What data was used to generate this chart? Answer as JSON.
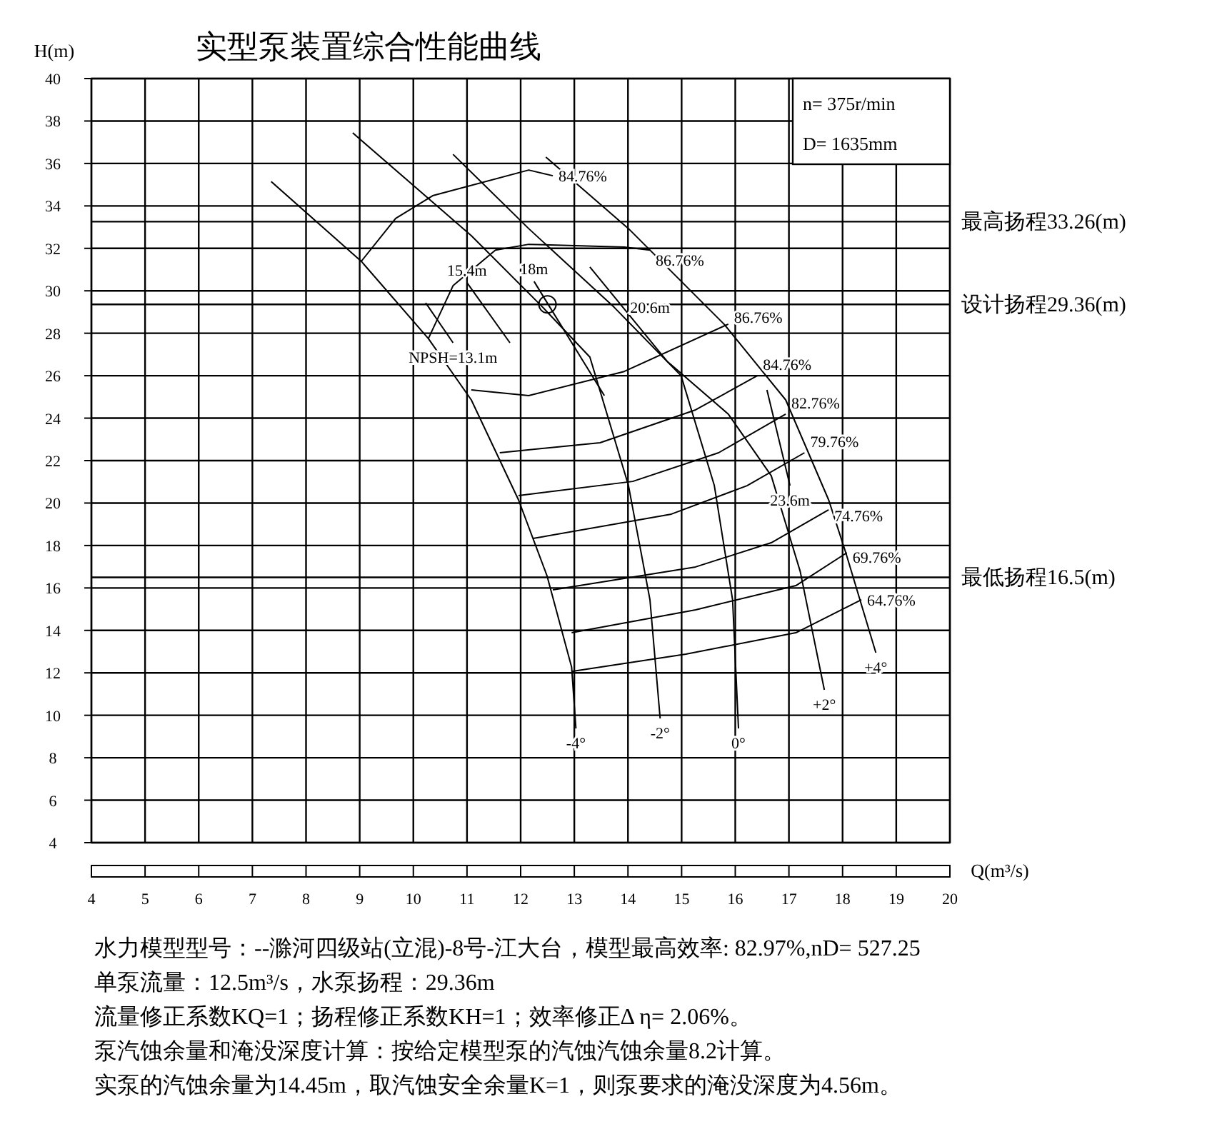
{
  "chart_data": {
    "type": "line",
    "title": "实型泵装置综合性能曲线",
    "xlabel": "Q(m³/s)",
    "ylabel": "H(m)",
    "xlim": [
      4,
      20
    ],
    "ylim": [
      4,
      40
    ],
    "xticks": [
      4,
      5,
      6,
      7,
      8,
      9,
      10,
      11,
      12,
      13,
      14,
      15,
      16,
      17,
      18,
      19,
      20
    ],
    "yticks": [
      4,
      6,
      8,
      10,
      12,
      14,
      16,
      18,
      20,
      22,
      24,
      26,
      28,
      30,
      32,
      34,
      36,
      38,
      40
    ],
    "grid": true,
    "legend": false,
    "marker": "none",
    "line_style": "solid",
    "series": [
      {
        "name": "-4°",
        "color": "#000000",
        "x": [
          7.35,
          9.03,
          10.28,
          11.08,
          11.96,
          12.49,
          12.95,
          13.03
        ],
        "values": [
          35.15,
          31.39,
          27.75,
          24.86,
          20.15,
          16.58,
          12.27,
          9.38
        ]
      },
      {
        "name": "-2°",
        "color": "#000000",
        "x": [
          8.87,
          11.08,
          12.41,
          13.29,
          14.01,
          14.41,
          14.6
        ],
        "values": [
          37.44,
          32.6,
          29.23,
          26.88,
          20.82,
          15.44,
          9.85
        ]
      },
      {
        "name": "0°",
        "color": "#000000",
        "x": [
          10.74,
          12.15,
          13.74,
          14.99,
          15.61,
          15.95,
          16.06
        ],
        "values": [
          36.43,
          32.93,
          29.23,
          26.0,
          20.82,
          15.44,
          9.38
        ]
      },
      {
        "name": "+2°",
        "color": "#000000",
        "x": [
          13.29,
          14.73,
          15.87,
          16.67,
          17.21,
          17.66
        ],
        "values": [
          31.12,
          26.68,
          24.19,
          21.29,
          16.78,
          11.2
        ]
      },
      {
        "name": "+4°",
        "color": "#000000",
        "x": [
          12.47,
          14.01,
          15.79,
          16.94,
          17.74,
          18.06,
          18.62
        ],
        "values": [
          36.3,
          32.93,
          28.43,
          24.86,
          20.15,
          17.66,
          12.95
        ]
      },
      {
        "name": "64.76%",
        "color": "#000000",
        "x": [
          12.95,
          15.08,
          17.13,
          18.35
        ],
        "values": [
          12.07,
          12.88,
          13.89,
          15.44
        ]
      },
      {
        "name": "69.76%",
        "color": "#000000",
        "x": [
          12.95,
          15.26,
          17.13,
          18.08
        ],
        "values": [
          13.89,
          14.97,
          16.11,
          17.66
        ]
      },
      {
        "name": "74.76%",
        "color": "#000000",
        "x": [
          12.6,
          15.26,
          16.67,
          17.74
        ],
        "values": [
          15.91,
          16.99,
          18.13,
          19.68
        ]
      },
      {
        "name": "79.76%",
        "color": "#000000",
        "x": [
          12.23,
          14.81,
          16.22,
          17.29
        ],
        "values": [
          18.33,
          19.48,
          20.82,
          22.37
        ]
      },
      {
        "name": "82.76%",
        "color": "#000000",
        "x": [
          11.96,
          14.09,
          15.69,
          16.94
        ],
        "values": [
          20.35,
          21.02,
          22.37,
          24.19
        ]
      },
      {
        "name": "84.76%",
        "color": "#000000",
        "x": [
          11.61,
          13.48,
          15.26,
          16.41
        ],
        "values": [
          22.37,
          22.84,
          24.39,
          26.0
        ]
      },
      {
        "name": "86.76%",
        "color": "#000000",
        "x": [
          11.08,
          12.15,
          13.93,
          15.87
        ],
        "values": [
          25.33,
          25.06,
          26.2,
          28.43
        ]
      },
      {
        "name": "86.76%",
        "color": "#000000",
        "x": [
          10.28,
          10.74,
          11.53,
          12.15,
          13.93,
          14.41
        ],
        "values": [
          27.75,
          30.24,
          31.92,
          32.19,
          32.06,
          31.92
        ]
      },
      {
        "name": "84.76%",
        "color": "#000000",
        "x": [
          9.03,
          9.67,
          10.36,
          12.15,
          12.6
        ],
        "values": [
          31.39,
          33.41,
          34.48,
          35.69,
          35.42
        ]
      },
      {
        "name": "NPSH=13.1m",
        "color": "#000000",
        "x": [
          10.23,
          10.74
        ],
        "values": [
          29.43,
          27.55
        ]
      },
      {
        "name": "15.4m",
        "color": "#000000",
        "x": [
          11.8,
          11.0
        ],
        "values": [
          27.55,
          30.38
        ]
      },
      {
        "name": "18m",
        "color": "#000000",
        "x": [
          13.56,
          12.25
        ],
        "values": [
          25.06,
          30.44
        ]
      },
      {
        "name": "23.6m",
        "color": "#000000",
        "x": [
          16.59,
          17.02
        ],
        "values": [
          25.33,
          20.82
        ]
      },
      {
        "type": "scatter",
        "marker": "circle",
        "color": "#000000",
        "x": [
          12.5
        ],
        "values": [
          29.36
        ]
      }
    ],
    "ref_lines": [
      {
        "axis": "y",
        "value": 33.26,
        "label": "最高扬程33.26(m)",
        "color": "#000000"
      },
      {
        "axis": "y",
        "value": 29.36,
        "label": "设计扬程29.36(m)",
        "color": "#000000"
      },
      {
        "axis": "y",
        "value": 16.5,
        "label": "最低扬程16.5(m)",
        "color": "#000000"
      }
    ],
    "annotations": [
      "n= 375r/min",
      "D= 1635mm",
      "水力模型型号：--滁河四级站(立混)-8号-江大台，模型最高效率: 82.97%,nD= 527.25",
      "单泵流量：12.5m³/s，水泵扬程：29.36m",
      "流量修正系数KQ=1；扬程修正系数KH=1；效率修正Δ η= 2.06%。",
      "泵汽蚀余量和淹没深度计算：按给定模型泵的汽蚀汽蚀余量8.2计算。",
      "实泵的汽蚀余量为14.45m，取汽蚀安全余量K=1，则泵要求的淹没深度为4.56m。",
      "20.6m"
    ]
  }
}
